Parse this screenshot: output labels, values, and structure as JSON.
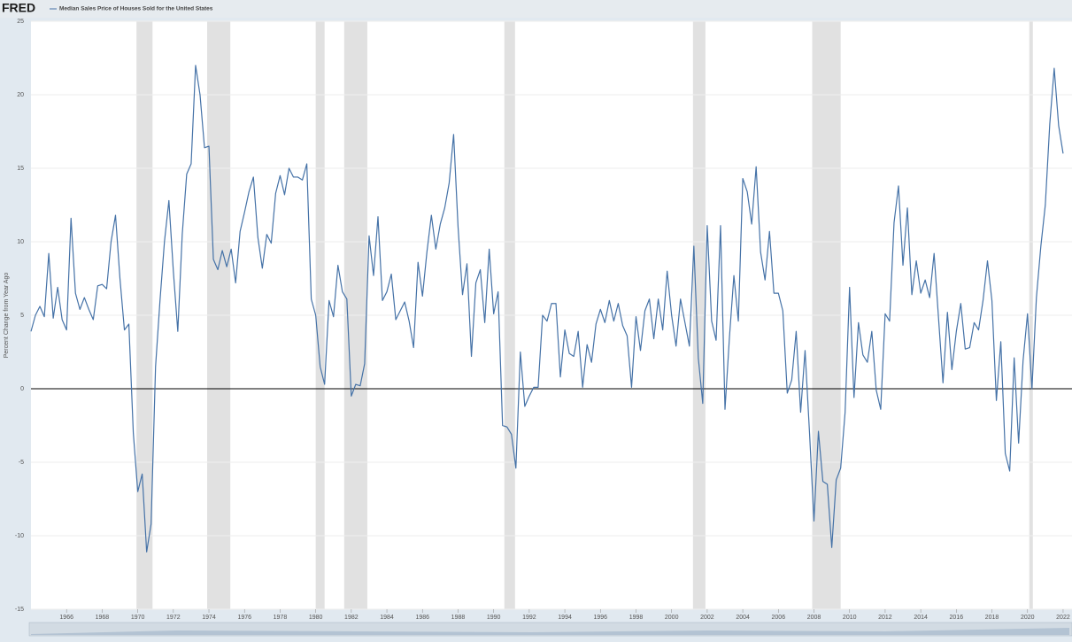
{
  "chart_data": {
    "type": "line",
    "logo": "FRED",
    "ylabel": "Percent Change from Year Ago",
    "series": [
      {
        "name": "Median Sales Price of Houses Sold for the United States",
        "color": "#4572a7",
        "values": [
          3.9,
          5.0,
          5.6,
          4.9,
          9.2,
          4.8,
          6.9,
          4.7,
          4.0,
          11.6,
          6.5,
          5.4,
          6.2,
          5.4,
          4.7,
          7.0,
          7.1,
          6.8,
          10.0,
          11.8,
          7.5,
          4.0,
          4.4,
          -3.0,
          -7.0,
          -5.8,
          -11.1,
          -9.2,
          1.5,
          6.0,
          10.0,
          12.8,
          8.0,
          3.9,
          10.5,
          14.6,
          15.3,
          22.0,
          20.0,
          16.4,
          16.5,
          8.8,
          8.1,
          9.4,
          8.3,
          9.5,
          7.2,
          10.7,
          12.0,
          13.4,
          14.4,
          10.3,
          8.2,
          10.5,
          9.9,
          13.3,
          14.5,
          13.2,
          15.0,
          14.4,
          14.4,
          14.2,
          15.3,
          6.1,
          5.0,
          1.5,
          0.3,
          6.0,
          4.9,
          8.4,
          6.6,
          6.1,
          -0.5,
          0.3,
          0.2,
          1.7,
          10.4,
          7.7,
          11.7,
          6.0,
          6.6,
          7.8,
          4.7,
          5.3,
          5.9,
          4.6,
          2.8,
          8.6,
          6.3,
          9.3,
          11.8,
          9.5,
          11.2,
          12.3,
          14.0,
          17.3,
          11.0,
          6.4,
          8.5,
          2.2,
          7.2,
          8.1,
          4.5,
          9.5,
          5.1,
          6.6,
          -2.5,
          -2.6,
          -3.1,
          -5.4,
          2.5,
          -1.2,
          -0.5,
          0.1,
          0.1,
          5.0,
          4.6,
          5.8,
          5.8,
          0.8,
          4.0,
          2.4,
          2.2,
          3.9,
          0.1,
          3.0,
          1.8,
          4.4,
          5.4,
          4.5,
          6.0,
          4.6,
          5.8,
          4.3,
          3.6,
          0.1,
          4.9,
          2.6,
          5.3,
          6.1,
          3.4,
          6.1,
          4.0,
          8.0,
          5.0,
          2.9,
          6.1,
          4.5,
          2.9,
          9.7,
          2.1,
          -1.0,
          11.1,
          4.6,
          3.3,
          11.1,
          -1.4,
          3.5,
          7.7,
          4.6,
          14.3,
          13.4,
          11.2,
          15.1,
          9.3,
          7.4,
          10.7,
          6.5,
          6.5,
          5.3,
          -0.3,
          0.6,
          3.9,
          -1.6,
          2.6,
          -3.0,
          -9.0,
          -2.9,
          -6.3,
          -6.5,
          -10.8,
          -6.2,
          -5.4,
          -1.6,
          6.9,
          -0.6,
          4.5,
          2.3,
          1.8,
          3.9,
          -0.1,
          -1.4,
          5.1,
          4.6,
          11.3,
          13.8,
          8.4,
          12.3,
          6.4,
          8.7,
          6.5,
          7.4,
          6.2,
          9.2,
          4.8,
          0.4,
          5.2,
          1.3,
          3.9,
          5.8,
          2.7,
          2.8,
          4.5,
          4.0,
          6.0,
          8.7,
          6.0,
          -0.8,
          3.2,
          -4.4,
          -5.6,
          2.1,
          -3.7,
          1.9,
          5.1,
          0.0,
          6.2,
          9.7,
          12.5,
          18.0,
          21.8,
          17.9,
          16.0
        ]
      }
    ],
    "x": [
      1964,
      1964.25,
      1964.5,
      1964.75,
      1965,
      1965.25,
      1965.5,
      1965.75,
      1966,
      1966.25,
      1966.5,
      1966.75,
      1967,
      1967.25,
      1967.5,
      1967.75,
      1968,
      1968.25,
      1968.5,
      1968.75,
      1969,
      1969.25,
      1969.5,
      1969.75,
      1970,
      1970.25,
      1970.5,
      1970.75,
      1971,
      1971.25,
      1971.5,
      1971.75,
      1972,
      1972.25,
      1972.5,
      1972.75,
      1973,
      1973.25,
      1973.5,
      1973.75,
      1974,
      1974.25,
      1974.5,
      1974.75,
      1975,
      1975.25,
      1975.5,
      1975.75,
      1976,
      1976.25,
      1976.5,
      1976.75,
      1977,
      1977.25,
      1977.5,
      1977.75,
      1978,
      1978.25,
      1978.5,
      1978.75,
      1979,
      1979.25,
      1979.5,
      1979.75,
      1980,
      1980.25,
      1980.5,
      1980.75,
      1981,
      1981.25,
      1981.5,
      1981.75,
      1982,
      1982.25,
      1982.5,
      1982.75,
      1983,
      1983.25,
      1983.5,
      1983.75,
      1984,
      1984.25,
      1984.5,
      1984.75,
      1985,
      1985.25,
      1985.5,
      1985.75,
      1986,
      1986.25,
      1986.5,
      1986.75,
      1987,
      1987.25,
      1987.5,
      1987.75,
      1988,
      1988.25,
      1988.5,
      1988.75,
      1989,
      1989.25,
      1989.5,
      1989.75,
      1990,
      1990.25,
      1990.5,
      1990.75,
      1991,
      1991.25,
      1991.5,
      1991.75,
      1992,
      1992.25,
      1992.5,
      1992.75,
      1993,
      1993.25,
      1993.5,
      1993.75,
      1994,
      1994.25,
      1994.5,
      1994.75,
      1995,
      1995.25,
      1995.5,
      1995.75,
      1996,
      1996.25,
      1996.5,
      1996.75,
      1997,
      1997.25,
      1997.5,
      1997.75,
      1998,
      1998.25,
      1998.5,
      1998.75,
      1999,
      1999.25,
      1999.5,
      1999.75,
      2000,
      2000.25,
      2000.5,
      2000.75,
      2001,
      2001.25,
      2001.5,
      2001.75,
      2002,
      2002.25,
      2002.5,
      2002.75,
      2003,
      2003.25,
      2003.5,
      2003.75,
      2004,
      2004.25,
      2004.5,
      2004.75,
      2005,
      2005.25,
      2005.5,
      2005.75,
      2006,
      2006.25,
      2006.5,
      2006.75,
      2007,
      2007.25,
      2007.5,
      2007.75,
      2008,
      2008.25,
      2008.5,
      2008.75,
      2009,
      2009.25,
      2009.5,
      2009.75,
      2010,
      2010.25,
      2010.5,
      2010.75,
      2011,
      2011.25,
      2011.5,
      2011.75,
      2012,
      2012.25,
      2012.5,
      2012.75,
      2013,
      2013.25,
      2013.5,
      2013.75,
      2014,
      2014.25,
      2014.5,
      2014.75,
      2015,
      2015.25,
      2015.5,
      2015.75,
      2016,
      2016.25,
      2016.5,
      2016.75,
      2017,
      2017.25,
      2017.5,
      2017.75,
      2018,
      2018.25,
      2018.5,
      2018.75,
      2019,
      2019.25,
      2019.5,
      2019.75,
      2020,
      2020.25,
      2020.5,
      2020.75,
      2021,
      2021.25,
      2021.5,
      2021.75,
      2022
    ],
    "recessions": [
      [
        1969.93,
        1970.83
      ],
      [
        1973.9,
        1975.2
      ],
      [
        1980.0,
        1980.5
      ],
      [
        1981.6,
        1982.9
      ],
      [
        1990.6,
        1991.2
      ],
      [
        2001.2,
        2001.9
      ],
      [
        2007.9,
        2009.5
      ],
      [
        2020.1,
        2020.3
      ]
    ],
    "recession_color": "#e1e1e1",
    "xlim": [
      1964,
      2022.5
    ],
    "xticks": [
      1966,
      1968,
      1970,
      1972,
      1974,
      1976,
      1978,
      1980,
      1982,
      1984,
      1986,
      1988,
      1990,
      1992,
      1994,
      1996,
      1998,
      2000,
      2002,
      2004,
      2006,
      2008,
      2010,
      2012,
      2014,
      2016,
      2018,
      2020,
      2022
    ],
    "ylim": [
      -15,
      25
    ],
    "yticks": [
      -15,
      -10,
      -5,
      0,
      5,
      10,
      15,
      20,
      25
    ],
    "grid": true
  }
}
